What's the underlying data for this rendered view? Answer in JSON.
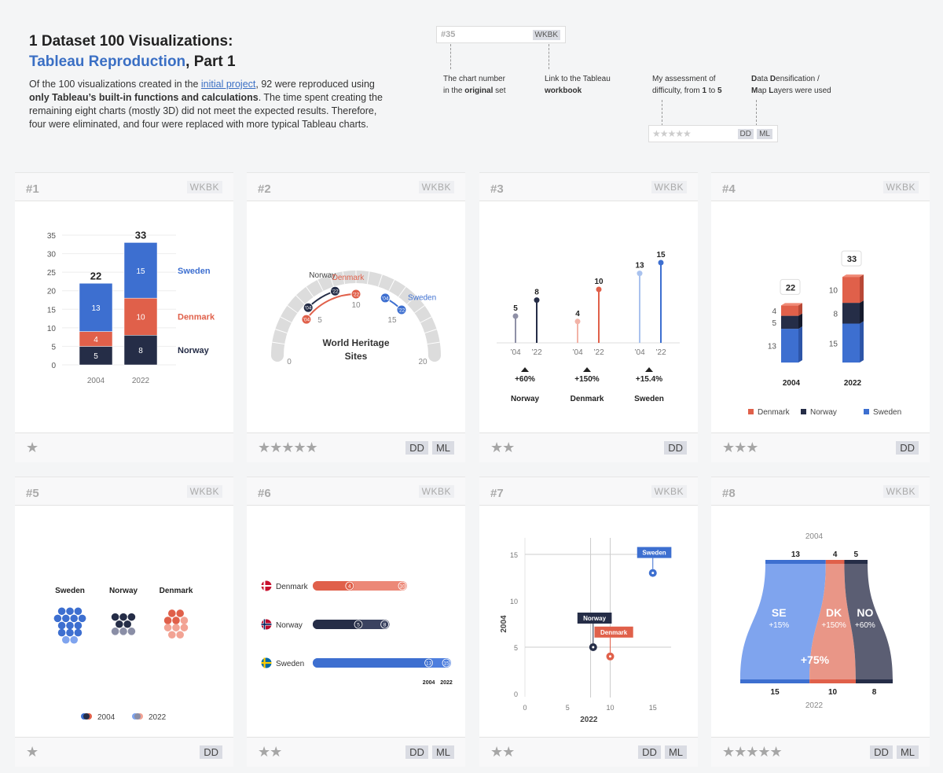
{
  "header": {
    "title_line1": "1 Dataset 100 Visualizations:",
    "title_blue": "Tableau Reproduction",
    "title_rest": ", Part 1",
    "intro_a": "Of the 100 visualizations created in the ",
    "intro_link": "initial project",
    "intro_b": ", 92 were reproduced using ",
    "intro_bold": "only Tableau’s built-in functions and calculations",
    "intro_c": ". The time spent creating the remaining eight charts (mostly 3D) did not meet the expected results. Therefore, four were eliminated, and four were replaced with more typical Tableau charts."
  },
  "legend": {
    "sample_num": "#35",
    "sample_wkbk": "WKBK",
    "note1_a": "The chart number",
    "note1_b": "in the ",
    "note1_bold": "original",
    "note1_c": " set",
    "note2_a": "Link to the Tableau",
    "note2_bold": "workbook",
    "note3_a": "My assessment of",
    "note3_b": "difficulty, from ",
    "note3_one": "1",
    "note3_to": " to ",
    "note3_five": "5",
    "note4_d": "D",
    "note4_a": "ata ",
    "note4_d2": "D",
    "note4_b": "ensification /",
    "note4_m": "M",
    "note4_c": "ap ",
    "note4_l": "L",
    "note4_e": "ayers were used",
    "sample_stars": "★★★★★",
    "sample_dd": "DD",
    "sample_ml": "ML"
  },
  "cards": [
    {
      "num": "#1",
      "wkbk": "WKBK",
      "stars": "★",
      "badges": []
    },
    {
      "num": "#2",
      "wkbk": "WKBK",
      "stars": "★★★★★",
      "badges": [
        "DD",
        "ML"
      ]
    },
    {
      "num": "#3",
      "wkbk": "WKBK",
      "stars": "★★",
      "badges": [
        "DD"
      ]
    },
    {
      "num": "#4",
      "wkbk": "WKBK",
      "stars": "★★★",
      "badges": [
        "DD"
      ]
    },
    {
      "num": "#5",
      "wkbk": "WKBK",
      "stars": "★",
      "badges": [
        "DD"
      ]
    },
    {
      "num": "#6",
      "wkbk": "WKBK",
      "stars": "★★",
      "badges": [
        "DD",
        "ML"
      ]
    },
    {
      "num": "#7",
      "wkbk": "WKBK",
      "stars": "★★",
      "badges": [
        "DD",
        "ML"
      ]
    },
    {
      "num": "#8",
      "wkbk": "WKBK",
      "stars": "★★★★★",
      "badges": [
        "DD",
        "ML"
      ]
    }
  ],
  "colors": {
    "sweden": "#3d6fd0",
    "denmark": "#e0604a",
    "norway": "#252d47"
  },
  "chart_data": [
    {
      "type": "bar",
      "id": 1,
      "categories": [
        "2004",
        "2022"
      ],
      "series": [
        {
          "name": "Norway",
          "values": [
            5,
            8
          ]
        },
        {
          "name": "Denmark",
          "values": [
            4,
            10
          ]
        },
        {
          "name": "Sweden",
          "values": [
            13,
            15
          ]
        }
      ],
      "totals": [
        22,
        33
      ],
      "yticks": [
        0,
        5,
        10,
        15,
        20,
        25,
        30,
        35
      ],
      "ylim": [
        0,
        35
      ]
    },
    {
      "type": "gauge",
      "id": 2,
      "title": "World Heritage Sites",
      "range": [
        0,
        20
      ],
      "ticks": [
        0,
        5,
        10,
        15,
        20
      ],
      "series": [
        {
          "name": "Norway",
          "values": [
            5,
            8
          ]
        },
        {
          "name": "Denmark",
          "values": [
            4,
            10
          ]
        },
        {
          "name": "Sweden",
          "values": [
            13,
            15
          ]
        }
      ],
      "x": [
        "'04",
        "'22"
      ]
    },
    {
      "type": "lollipop",
      "id": 3,
      "x": [
        "’04",
        "’22"
      ],
      "series": [
        {
          "name": "Norway",
          "values": [
            5,
            8
          ],
          "change": "+60%"
        },
        {
          "name": "Denmark",
          "values": [
            4,
            10
          ],
          "change": "+150%"
        },
        {
          "name": "Sweden",
          "values": [
            13,
            15
          ],
          "change": "+15.4%"
        }
      ]
    },
    {
      "type": "bar",
      "id": 4,
      "categories": [
        "2004",
        "2022"
      ],
      "series": [
        {
          "name": "Denmark",
          "values": [
            4,
            10
          ]
        },
        {
          "name": "Norway",
          "values": [
            5,
            8
          ]
        },
        {
          "name": "Sweden",
          "values": [
            13,
            15
          ]
        }
      ],
      "totals": [
        22,
        33
      ]
    },
    {
      "type": "hexbin",
      "id": 5,
      "x": [
        "2004",
        "2022"
      ],
      "series": [
        {
          "name": "Sweden",
          "values": [
            13,
            15
          ]
        },
        {
          "name": "Norway",
          "values": [
            5,
            8
          ]
        },
        {
          "name": "Denmark",
          "values": [
            4,
            10
          ]
        }
      ]
    },
    {
      "type": "bar",
      "id": 6,
      "x": [
        "2004",
        "2022"
      ],
      "series": [
        {
          "name": "Denmark",
          "values": [
            4,
            10
          ]
        },
        {
          "name": "Norway",
          "values": [
            5,
            8
          ]
        },
        {
          "name": "Sweden",
          "values": [
            13,
            15
          ]
        }
      ]
    },
    {
      "type": "scatter",
      "id": 7,
      "xlabel": "2022",
      "ylabel": "2004",
      "xticks": [
        0,
        5,
        10,
        15
      ],
      "yticks": [
        0,
        5,
        10,
        15
      ],
      "points": [
        {
          "name": "Sweden",
          "x": 15,
          "y": 13
        },
        {
          "name": "Norway",
          "x": 8,
          "y": 5
        },
        {
          "name": "Denmark",
          "x": 10,
          "y": 4
        }
      ]
    },
    {
      "type": "area",
      "id": 8,
      "top_label": "2004",
      "bottom_label": "2022",
      "total_change": "+75%",
      "series": [
        {
          "name": "SE",
          "from": 13,
          "to": 15,
          "change": "+15%"
        },
        {
          "name": "DK",
          "from": 4,
          "to": 10,
          "change": "+150%"
        },
        {
          "name": "NO",
          "from": 5,
          "to": 8,
          "change": "+60%"
        }
      ]
    }
  ]
}
